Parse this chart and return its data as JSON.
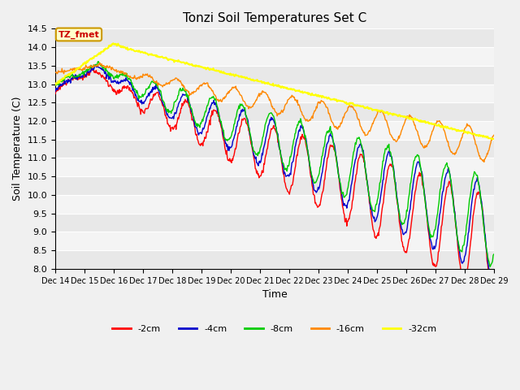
{
  "title": "Tonzi Soil Temperatures Set C",
  "xlabel": "Time",
  "ylabel": "Soil Temperature (C)",
  "ylim": [
    8.0,
    14.5
  ],
  "annotation_label": "TZ_fmet",
  "annotation_color": "#cc0000",
  "annotation_bg": "#ffffcc",
  "annotation_border": "#cc9900",
  "series_labels": [
    "-2cm",
    "-4cm",
    "-8cm",
    "-16cm",
    "-32cm"
  ],
  "series_colors": [
    "#ff0000",
    "#0000cc",
    "#00cc00",
    "#ff8800",
    "#ffff00"
  ],
  "plot_bg_light": "#f0f0f0",
  "plot_bg_dark": "#e0e0e0",
  "n_points": 720,
  "x_start": 14,
  "x_end": 29,
  "xtick_positions": [
    14,
    15,
    16,
    17,
    18,
    19,
    20,
    21,
    22,
    23,
    24,
    25,
    26,
    27,
    28,
    29
  ],
  "xtick_labels": [
    "Dec 14",
    "Dec 15",
    "Dec 16",
    "Dec 17",
    "Dec 18",
    "Dec 19",
    "Dec 20",
    "Dec 21",
    "Dec 22",
    "Dec 23",
    "Dec 24",
    "Dec 25",
    "Dec 26",
    "Dec 27",
    "Dec 28",
    "Dec 29"
  ]
}
